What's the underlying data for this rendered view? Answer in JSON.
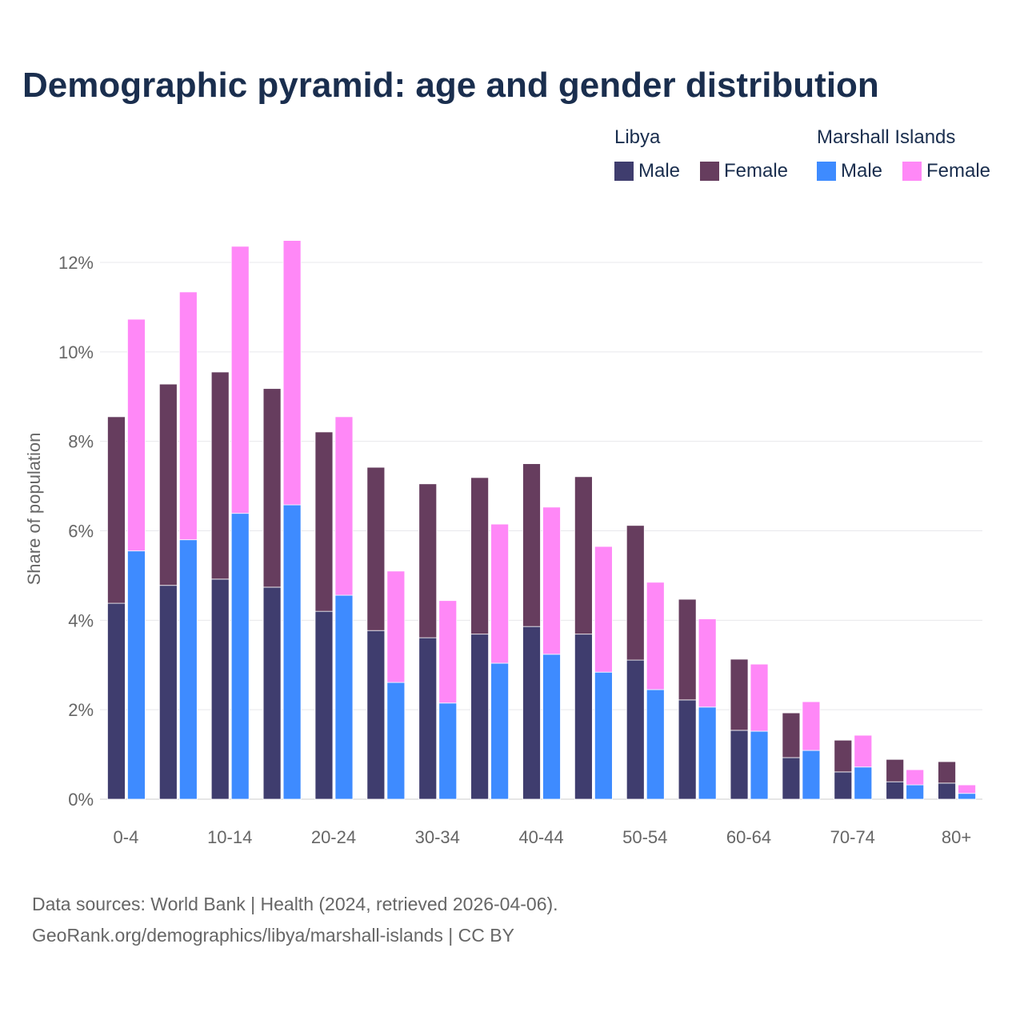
{
  "chart_data": {
    "type": "bar",
    "stacked": true,
    "title": "Demographic pyramid: age and gender distribution",
    "ylabel": "Share of population",
    "xlabel": "",
    "ylim": [
      0,
      12.5
    ],
    "yticks": [
      0,
      2,
      4,
      6,
      8,
      10,
      12
    ],
    "ytick_labels": [
      "0%",
      "2%",
      "4%",
      "6%",
      "8%",
      "10%",
      "12%"
    ],
    "categories": [
      "0-4",
      "5-9",
      "10-14",
      "15-19",
      "20-24",
      "25-29",
      "30-34",
      "35-39",
      "40-44",
      "45-49",
      "50-54",
      "55-59",
      "60-64",
      "65-69",
      "70-74",
      "75-79",
      "80+"
    ],
    "xtick_labels_shown": [
      "0-4",
      "10-14",
      "20-24",
      "30-34",
      "40-44",
      "50-54",
      "60-64",
      "70-74",
      "80+"
    ],
    "grid": true,
    "legend_placement": "top-right",
    "groups": [
      {
        "name": "Libya",
        "series": [
          {
            "name": "Male",
            "color": "#3f3d6e",
            "values": [
              4.38,
              4.78,
              4.92,
              4.74,
              4.2,
              3.77,
              3.61,
              3.69,
              3.86,
              3.69,
              3.11,
              2.22,
              1.54,
              0.93,
              0.61,
              0.39,
              0.36
            ]
          },
          {
            "name": "Female",
            "color": "#663d5e",
            "values": [
              4.17,
              4.5,
              4.63,
              4.44,
              4.01,
              3.65,
              3.44,
              3.5,
              3.64,
              3.52,
              3.01,
              2.25,
              1.59,
              1.0,
              0.71,
              0.5,
              0.48
            ]
          }
        ]
      },
      {
        "name": "Marshall Islands",
        "series": [
          {
            "name": "Male",
            "color": "#3e8bff",
            "values": [
              5.55,
              5.8,
              6.39,
              6.58,
              4.56,
              2.61,
              2.15,
              3.04,
              3.24,
              2.84,
              2.45,
              2.06,
              1.52,
              1.09,
              0.72,
              0.32,
              0.13
            ]
          },
          {
            "name": "Female",
            "color": "#ff88f7",
            "values": [
              5.18,
              5.54,
              5.97,
              5.91,
              3.99,
              2.49,
              2.29,
              3.11,
              3.29,
              2.81,
              2.4,
              1.97,
              1.5,
              1.09,
              0.71,
              0.34,
              0.19
            ]
          }
        ]
      }
    ]
  },
  "sources": {
    "line1": "Data sources: World Bank | Health (2024, retrieved 2026-04-06).",
    "line2": "GeoRank.org/demographics/libya/marshall-islands | CC BY"
  }
}
